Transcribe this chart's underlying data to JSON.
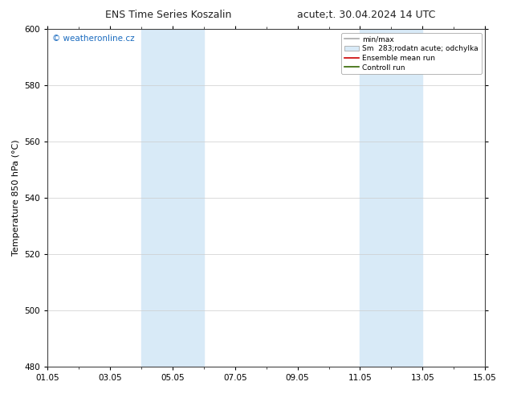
{
  "title_left": "ENS Time Series Koszalin",
  "title_right": "acute;t. 30.04.2024 14 UTC",
  "ylabel": "Temperature 850 hPa (°C)",
  "xlabel_ticks": [
    "01.05",
    "03.05",
    "05.05",
    "07.05",
    "09.05",
    "11.05",
    "13.05",
    "15.05"
  ],
  "xtick_positions": [
    0,
    2,
    4,
    6,
    8,
    10,
    12,
    14
  ],
  "xlim": [
    0,
    14
  ],
  "ylim": [
    480,
    600
  ],
  "yticks": [
    480,
    500,
    520,
    540,
    560,
    580,
    600
  ],
  "background_color": "#ffffff",
  "plot_bg_color": "#ffffff",
  "shaded_regions": [
    {
      "xstart": 3.0,
      "xend": 5.0,
      "color": "#d8eaf7"
    },
    {
      "xstart": 10.0,
      "xend": 12.0,
      "color": "#d8eaf7"
    }
  ],
  "watermark_text": "© weatheronline.cz",
  "watermark_color": "#1a6bbf",
  "legend_entries": [
    {
      "label": "min/max",
      "color": "#aaaaaa",
      "lw": 1.2,
      "type": "line"
    },
    {
      "label": "Sm  283;rodatn acute; odchylka",
      "color": "#d8eaf7",
      "edge_color": "#aaaaaa",
      "type": "patch"
    },
    {
      "label": "Ensemble mean run",
      "color": "#cc0000",
      "lw": 1.2,
      "type": "line"
    },
    {
      "label": "Controll run",
      "color": "#336600",
      "lw": 1.2,
      "type": "line"
    }
  ],
  "grid_color": "#cccccc",
  "spine_color": "#444444",
  "tick_label_fontsize": 7.5,
  "axis_label_fontsize": 8,
  "title_fontsize": 9,
  "watermark_fontsize": 7.5,
  "legend_fontsize": 6.5
}
